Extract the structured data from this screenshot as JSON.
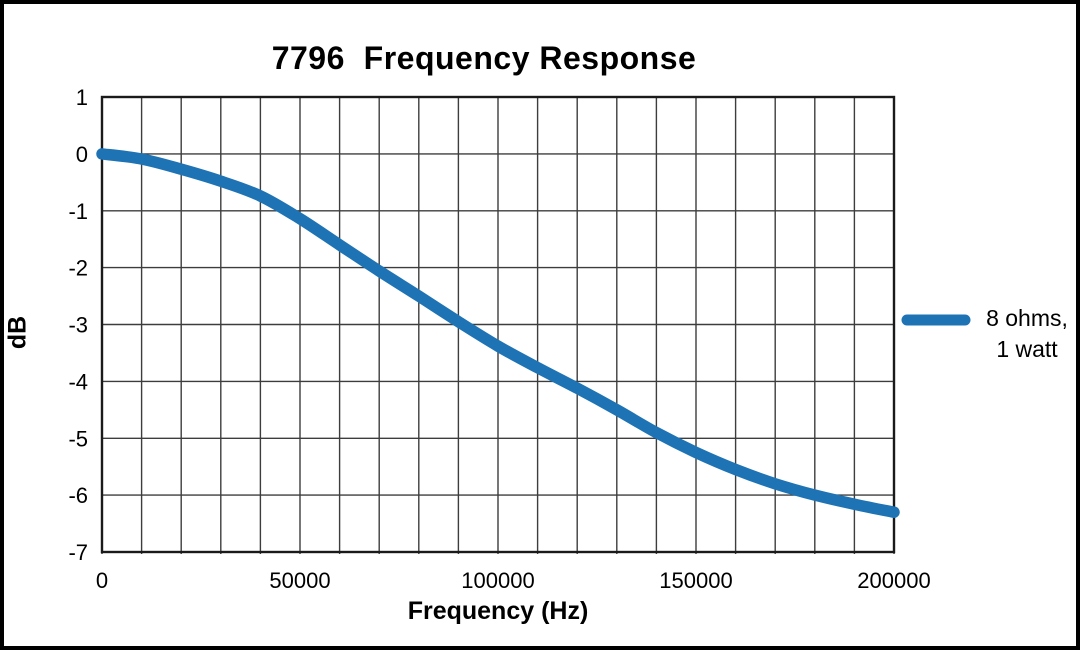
{
  "chart_data": {
    "type": "line",
    "title": "7796  Frequency Response",
    "xlabel": "Frequency (Hz)",
    "ylabel": "dB",
    "xlim": [
      0,
      200000
    ],
    "ylim": [
      -7,
      1
    ],
    "x_grid_step": 10000,
    "x_tick_values": [
      0,
      50000,
      100000,
      150000,
      200000
    ],
    "x_tick_labels": [
      "0",
      "50000",
      "100000",
      "150000",
      "200000"
    ],
    "y_tick_values": [
      1,
      0,
      -1,
      -2,
      -3,
      -4,
      -5,
      -6,
      -7
    ],
    "y_tick_labels": [
      "1",
      "0",
      "-1",
      "-2",
      "-3",
      "-4",
      "-5",
      "-6",
      "-7"
    ],
    "grid": true,
    "legend": {
      "position": "right-outside",
      "entries": [
        {
          "label_lines": [
            "8 ohms,",
            "1 watt"
          ],
          "color": "#1E73B5"
        }
      ]
    },
    "series": [
      {
        "name": "8 ohms, 1 watt",
        "color": "#1E73B5",
        "x": [
          0,
          10000,
          20000,
          30000,
          40000,
          50000,
          60000,
          70000,
          80000,
          90000,
          100000,
          110000,
          120000,
          130000,
          140000,
          150000,
          160000,
          170000,
          180000,
          190000,
          200000
        ],
        "y": [
          0.0,
          -0.09,
          -0.27,
          -0.48,
          -0.74,
          -1.14,
          -1.6,
          -2.06,
          -2.5,
          -2.95,
          -3.38,
          -3.76,
          -4.12,
          -4.5,
          -4.9,
          -5.25,
          -5.55,
          -5.8,
          -6.0,
          -6.16,
          -6.3
        ]
      }
    ]
  },
  "colors": {
    "series_blue": "#1E73B5",
    "gridline": "#3d3d3d",
    "plot_border": "#1a1a1a",
    "frame": "#000000",
    "text": "#000000",
    "background": "#ffffff"
  }
}
